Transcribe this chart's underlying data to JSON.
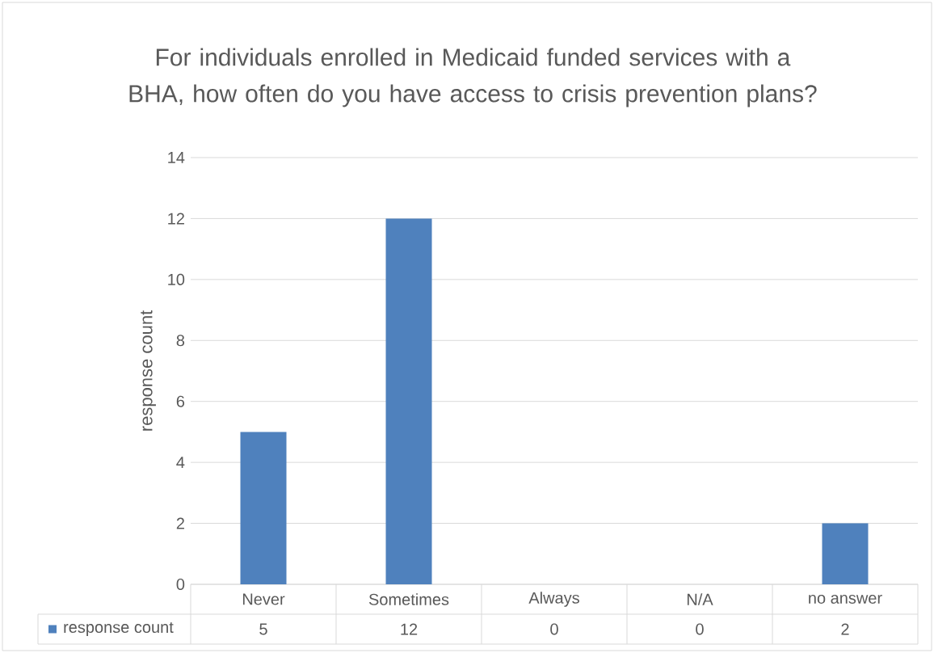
{
  "chart_data": {
    "type": "bar",
    "title": "For individuals enrolled in Medicaid funded services with a BHA, how often do you have access to crisis prevention plans?",
    "ylabel": "response count",
    "categories": [
      "Never",
      "Sometimes",
      "Always",
      "N/A",
      "no answer"
    ],
    "series": [
      {
        "name": "response count",
        "color": "#4f81bd",
        "values": [
          5,
          12,
          0,
          0,
          2
        ]
      }
    ],
    "ylim": [
      0,
      14
    ],
    "yticks": [
      0,
      2,
      4,
      6,
      8,
      10,
      12,
      14
    ],
    "grid": "y",
    "legend": "bottom",
    "data_labels": true
  }
}
